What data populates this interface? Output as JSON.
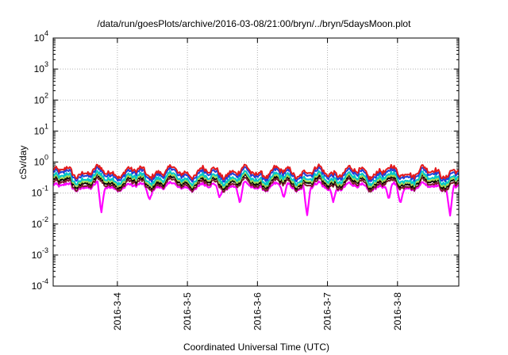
{
  "chart_data": {
    "type": "line",
    "title": "/data/run/goesPlots/archive/2016-03-08/21:00/bryn/../bryn/5daysMoon.plot",
    "xlabel": "Coordinated Universal Time (UTC)",
    "ylabel": "cSv/day",
    "yscale": "log",
    "ylim_exponents": [
      -4,
      4
    ],
    "y_ticks": [
      {
        "base": "10",
        "exp": "4"
      },
      {
        "base": "10",
        "exp": "3"
      },
      {
        "base": "10",
        "exp": "2"
      },
      {
        "base": "10",
        "exp": "1"
      },
      {
        "base": "10",
        "exp": "0"
      },
      {
        "base": "10",
        "exp": "-1"
      },
      {
        "base": "10",
        "exp": "-2"
      },
      {
        "base": "10",
        "exp": "-3"
      },
      {
        "base": "10",
        "exp": "-4"
      }
    ],
    "xlim": [
      "2016-03-03 02:00",
      "2016-03-08 21:00"
    ],
    "x_ticks": [
      "2016-3-4",
      "2016-3-5",
      "2016-3-6",
      "2016-3-7",
      "2016-3-8"
    ],
    "grid": true,
    "series": [
      {
        "color": "#e41a1c",
        "level": 0.48
      },
      {
        "color": "#1f3fd8",
        "level": 0.4
      },
      {
        "color": "#00c8c8",
        "level": 0.3
      },
      {
        "color": "#a6d854",
        "level": 0.26
      },
      {
        "color": "#000000",
        "level": 0.23
      },
      {
        "color": "#7a1f2b",
        "level": 0.19
      },
      {
        "color": "#ff00ff",
        "level": 0.16,
        "dips": [
          {
            "x": "2016-03-03 18:30",
            "y": 0.022
          },
          {
            "x": "2016-03-04 11:00",
            "y": 0.06
          },
          {
            "x": "2016-03-05 11:00",
            "y": 0.07
          },
          {
            "x": "2016-03-05 18:00",
            "y": 0.045
          },
          {
            "x": "2016-03-06 09:00",
            "y": 0.07
          },
          {
            "x": "2016-03-06 17:00",
            "y": 0.018
          },
          {
            "x": "2016-03-07 02:00",
            "y": 0.05
          },
          {
            "x": "2016-03-07 21:00",
            "y": 0.06
          },
          {
            "x": "2016-03-08 01:00",
            "y": 0.045
          },
          {
            "x": "2016-03-08 18:00",
            "y": 0.018
          }
        ]
      }
    ]
  }
}
